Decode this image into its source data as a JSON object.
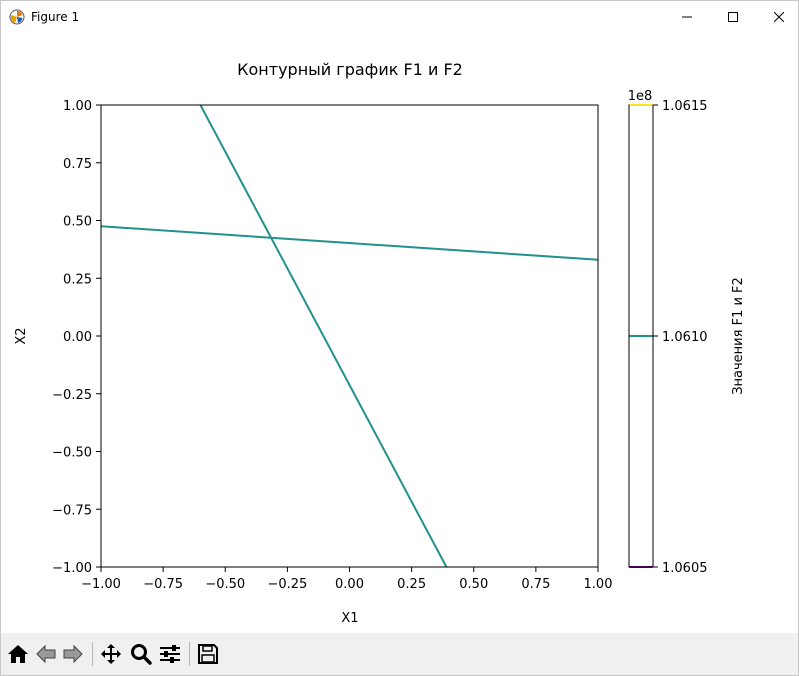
{
  "window": {
    "title": "Figure 1",
    "icons": {
      "app": "matplotlib-icon",
      "minimize": "minimize-icon",
      "maximize": "maximize-icon",
      "close": "close-icon"
    }
  },
  "toolbar": {
    "buttons": [
      {
        "name": "home-icon",
        "label": "Home"
      },
      {
        "name": "back-arrow-icon",
        "label": "Back"
      },
      {
        "name": "forward-arrow-icon",
        "label": "Forward"
      },
      {
        "name": "pan-icon",
        "label": "Pan"
      },
      {
        "name": "zoom-icon",
        "label": "Zoom"
      },
      {
        "name": "configure-subplots-icon",
        "label": "Subplots"
      },
      {
        "name": "save-icon",
        "label": "Save"
      }
    ]
  },
  "chart_data": {
    "type": "contour",
    "title": "Контурный график F1 и F2",
    "xlabel": "X1",
    "ylabel": "X2",
    "xlim": [
      -1.0,
      1.0
    ],
    "ylim": [
      -1.0,
      1.0
    ],
    "xticks": [
      "−1.00",
      "−0.75",
      "−0.50",
      "−0.25",
      "0.00",
      "0.25",
      "0.50",
      "0.75",
      "1.00"
    ],
    "yticks": [
      "−1.00",
      "−0.75",
      "−0.50",
      "−0.25",
      "0.00",
      "0.25",
      "0.50",
      "0.75",
      "1.00"
    ],
    "series": [
      {
        "color": "#21918c",
        "x": [
          -1.0,
          1.0
        ],
        "y": [
          0.475,
          0.33
        ]
      },
      {
        "color": "#21918c",
        "x": [
          -0.6,
          0.39
        ],
        "y": [
          1.0,
          -1.0
        ]
      }
    ],
    "colorbar": {
      "label": "Значения F1 и F2",
      "offset_text": "1e8",
      "ticks": [
        "1.0615",
        "1.0610",
        "1.0605"
      ],
      "levels": [
        {
          "value": 1.0615,
          "color": "#fde725"
        },
        {
          "value": 1.061,
          "color": "#21918c"
        },
        {
          "value": 1.0605,
          "color": "#440154"
        }
      ]
    },
    "grid": false
  }
}
